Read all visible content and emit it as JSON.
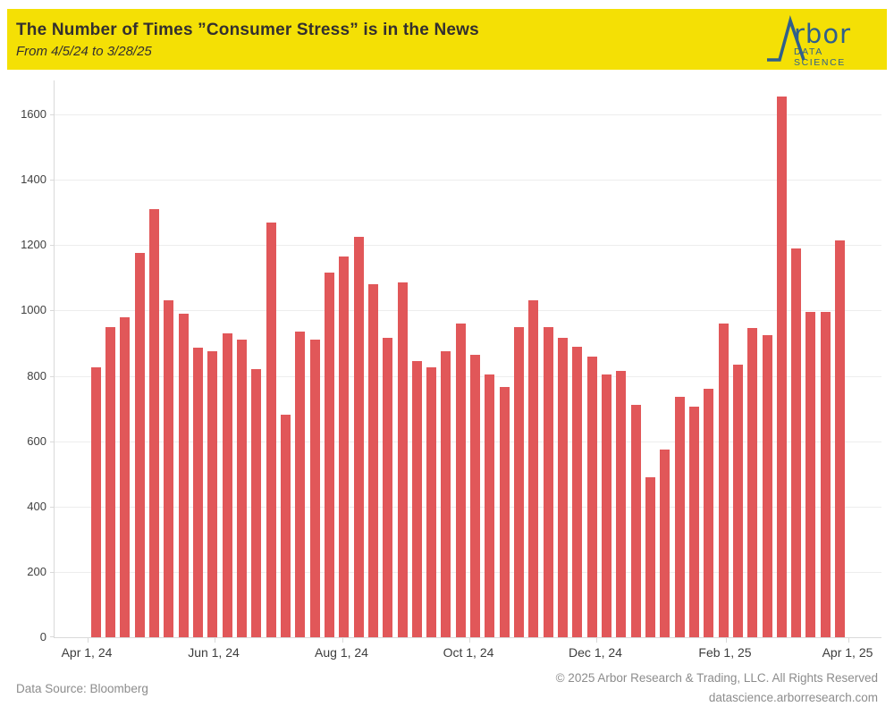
{
  "header": {
    "title": "The Number of Times ”Consumer Stress” is in the News",
    "subtitle": "From 4/5/24 to 3/28/25",
    "background_color": "#f4e005",
    "text_color": "#332f2f",
    "logo": {
      "mark": "arbor-lambda-mark",
      "wordmark_suffix": "rbor",
      "tagline": "DATA SCIENCE",
      "color": "#2f5f8c"
    }
  },
  "footer": {
    "source": "Data Source: Bloomberg",
    "copyright": "© 2025 Arbor Research & Trading, LLC. All Rights Reserved",
    "website": "datascience.arborresearch.com"
  },
  "chart_data": {
    "type": "bar",
    "title": "The Number of Times ”Consumer Stress” is in the News",
    "xlabel": "",
    "ylabel": "",
    "ylim": [
      0,
      1600
    ],
    "grid": true,
    "legend": "none",
    "bar_color": "#e15759",
    "y_ticks": [
      0,
      200,
      400,
      600,
      800,
      1000,
      1200,
      1400,
      1600
    ],
    "x_tick_labels": [
      "Apr 1, 24",
      "Jun 1, 24",
      "Aug 1, 24",
      "Oct 1, 24",
      "Dec 1, 24",
      "Feb 1, 25",
      "Apr 1, 25"
    ],
    "x": [
      "Apr 5, 24",
      "Apr 12, 24",
      "Apr 19, 24",
      "Apr 26, 24",
      "May 3, 24",
      "May 10, 24",
      "May 17, 24",
      "May 24, 24",
      "May 31, 24",
      "Jun 7, 24",
      "Jun 14, 24",
      "Jun 21, 24",
      "Jun 28, 24",
      "Jul 5, 24",
      "Jul 12, 24",
      "Jul 19, 24",
      "Jul 26, 24",
      "Aug 2, 24",
      "Aug 9, 24",
      "Aug 16, 24",
      "Aug 23, 24",
      "Aug 30, 24",
      "Sep 6, 24",
      "Sep 13, 24",
      "Sep 20, 24",
      "Sep 27, 24",
      "Oct 4, 24",
      "Oct 11, 24",
      "Oct 18, 24",
      "Oct 25, 24",
      "Nov 1, 24",
      "Nov 8, 24",
      "Nov 15, 24",
      "Nov 22, 24",
      "Nov 29, 24",
      "Dec 6, 24",
      "Dec 13, 24",
      "Dec 20, 24",
      "Dec 27, 24",
      "Jan 3, 25",
      "Jan 10, 25",
      "Jan 17, 25",
      "Jan 24, 25",
      "Jan 31, 25",
      "Feb 7, 25",
      "Feb 14, 25",
      "Feb 21, 25",
      "Feb 28, 25",
      "Mar 7, 25",
      "Mar 14, 25",
      "Mar 21, 25",
      "Mar 28, 25"
    ],
    "values": [
      825,
      950,
      980,
      1175,
      1310,
      1030,
      990,
      885,
      875,
      930,
      910,
      820,
      1270,
      680,
      935,
      910,
      1115,
      1165,
      1225,
      1080,
      915,
      1085,
      845,
      825,
      875,
      960,
      865,
      805,
      765,
      950,
      1030,
      950,
      915,
      890,
      860,
      805,
      815,
      710,
      490,
      575,
      735,
      705,
      760,
      960,
      835,
      945,
      925,
      1655,
      1190,
      995,
      995,
      1215
    ]
  }
}
